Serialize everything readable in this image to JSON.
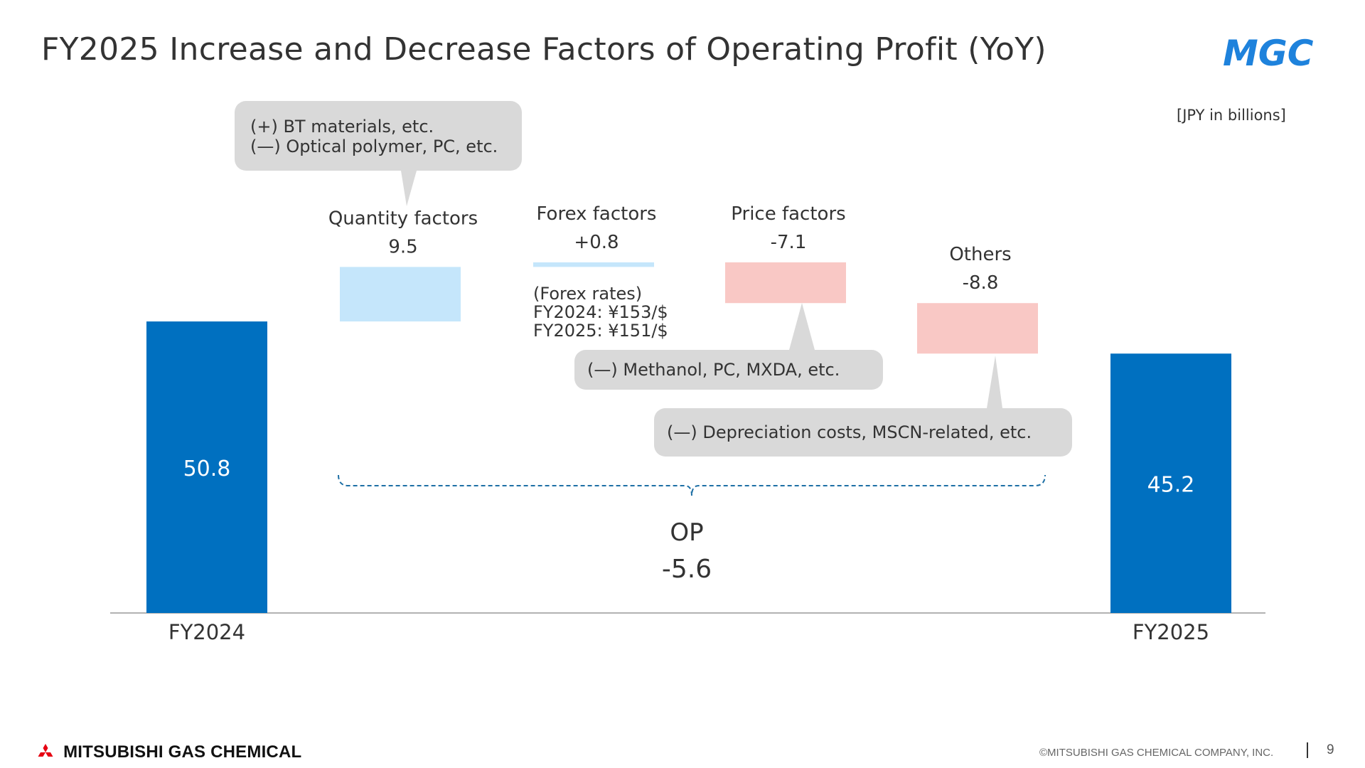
{
  "title": "FY2025 Increase and Decrease Factors of Operating Profit (YoY)",
  "logo_text": "MGC",
  "unit_note": "[JPY in billions]",
  "colors": {
    "total_bar": "#0070c0",
    "increase_bar": "#c5e6fb",
    "decrease_bar": "#f9c8c5",
    "callout_bg": "#d9d9d9",
    "bracket": "#1d6fa5",
    "logo_blue": "#1e82dc"
  },
  "chart_data": {
    "type": "waterfall",
    "steps": [
      {
        "kind": "total",
        "label": "FY2024",
        "value": 50.8,
        "value_label": "50.8"
      },
      {
        "kind": "delta",
        "label": "Quantity factors",
        "value": 9.5,
        "value_label": "9.5"
      },
      {
        "kind": "delta",
        "label": "Forex factors",
        "value": 0.8,
        "value_label": "+0.8"
      },
      {
        "kind": "delta",
        "label": "Price factors",
        "value": -7.1,
        "value_label": "-7.1"
      },
      {
        "kind": "delta",
        "label": "Others",
        "value": -8.8,
        "value_label": "-8.8"
      },
      {
        "kind": "total",
        "label": "FY2025",
        "value": 45.2,
        "value_label": "45.2"
      }
    ],
    "summary": {
      "label": "OP",
      "value": -5.6,
      "value_label": "-5.6"
    }
  },
  "callouts": {
    "quantity": [
      "(+) BT materials, etc.",
      "(—) Optical polymer, PC, etc."
    ],
    "price": [
      "(—) Methanol, PC, MXDA, etc."
    ],
    "others": [
      "(—)  Depreciation costs, MSCN-related, etc."
    ]
  },
  "forex_note": [
    "(Forex rates)",
    "FY2024: ¥153/$",
    "FY2025: ¥151/$"
  ],
  "footer": {
    "company": "MITSUBISHI GAS CHEMICAL",
    "copyright": "©MITSUBISHI GAS CHEMICAL COMPANY, INC.",
    "page": "9"
  }
}
